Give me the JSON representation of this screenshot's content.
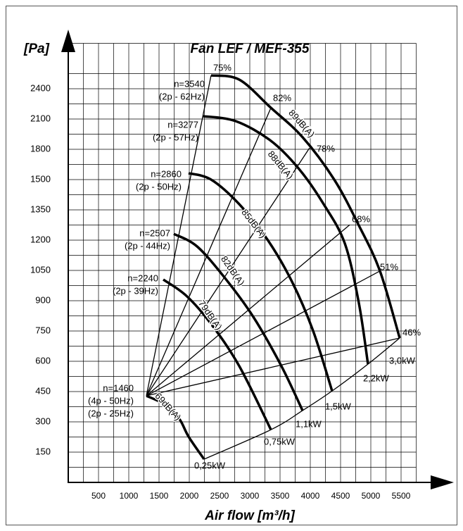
{
  "chart_data": {
    "type": "line",
    "title": "Fan LEF / MEF-355",
    "x_label": "Air flow [m³/h]",
    "y_label": "[Pa]",
    "xlim": [
      0,
      5750
    ],
    "xticks": [
      500,
      1000,
      1500,
      2000,
      2500,
      3000,
      3500,
      4000,
      4500,
      5000,
      5500
    ],
    "ylim": [
      0,
      2850
    ],
    "yticks": [
      150,
      300,
      450,
      600,
      750,
      900,
      1050,
      1200,
      1350,
      1500,
      1800,
      2100,
      2400
    ],
    "grid": true,
    "color": "#000000",
    "series": [
      {
        "name": "n=3540",
        "notes": [
          "(2p - 62Hz)"
        ],
        "power": "3,0kW",
        "x": [
          2360,
          2826,
          3349,
          3872,
          4395,
          4802,
          5151,
          5477
        ],
        "values": [
          2532,
          2490,
          2211,
          1920,
          1500,
          1273,
          1047,
          715
        ]
      },
      {
        "name": "n=3277",
        "notes": [
          "(2p - 57Hz)"
        ],
        "power": "2,2kW",
        "x": [
          2221,
          2767,
          3349,
          3814,
          4221,
          4570,
          4802,
          4953
        ],
        "values": [
          2128,
          2079,
          1884,
          1605,
          1378,
          1184,
          889,
          586
        ]
      },
      {
        "name": "n=2860",
        "notes": [
          "(2p - 50Hz)"
        ],
        "power": "1,5kW",
        "x": [
          1988,
          2360,
          2826,
          3291,
          3698,
          4047,
          4360
        ],
        "values": [
          1563,
          1500,
          1378,
          1203,
          994,
          750,
          453
        ]
      },
      {
        "name": "n=2507",
        "notes": [
          "(2p - 44Hz)"
        ],
        "power": "1,1kW",
        "x": [
          1744,
          2128,
          2593,
          3058,
          3523,
          3872
        ],
        "values": [
          1231,
          1169,
          1011,
          820,
          576,
          356
        ]
      },
      {
        "name": "n=2240",
        "notes": [
          "(2p - 39Hz)"
        ],
        "power": "0,75kW",
        "x": [
          1570,
          1953,
          2360,
          2826,
          3349
        ],
        "values": [
          1005,
          924,
          785,
          576,
          261
        ]
      },
      {
        "name": "n=1460",
        "notes": [
          "(4p - 50Hz)",
          "(2p - 25Hz)"
        ],
        "power": "0,25kW",
        "x": [
          1291,
          1605,
          1837,
          1988,
          2244
        ],
        "values": [
          429,
          384,
          314,
          227,
          115
        ]
      }
    ],
    "efficiency": [
      {
        "name": "75%",
        "x": [
          1291,
          2360
        ],
        "values": [
          429,
          2532
        ]
      },
      {
        "name": "82%",
        "x": [
          1291,
          3349
        ],
        "values": [
          429,
          2211
        ]
      },
      {
        "name": "78%",
        "x": [
          1291,
          3988
        ],
        "values": [
          429,
          1814
        ]
      },
      {
        "name": "68%",
        "x": [
          1291,
          4651
        ],
        "values": [
          429,
          1276
        ]
      },
      {
        "name": "51%",
        "x": [
          1291,
          5151
        ],
        "values": [
          429,
          1047
        ]
      },
      {
        "name": "46%",
        "x": [
          1291,
          5477
        ],
        "values": [
          429,
          715
        ]
      }
    ],
    "noise_labels": [
      "69dB(A)",
      "79dB(A)",
      "82dB(A)",
      "85dB(A)",
      "88dB(A)",
      "89dB(A)"
    ]
  }
}
